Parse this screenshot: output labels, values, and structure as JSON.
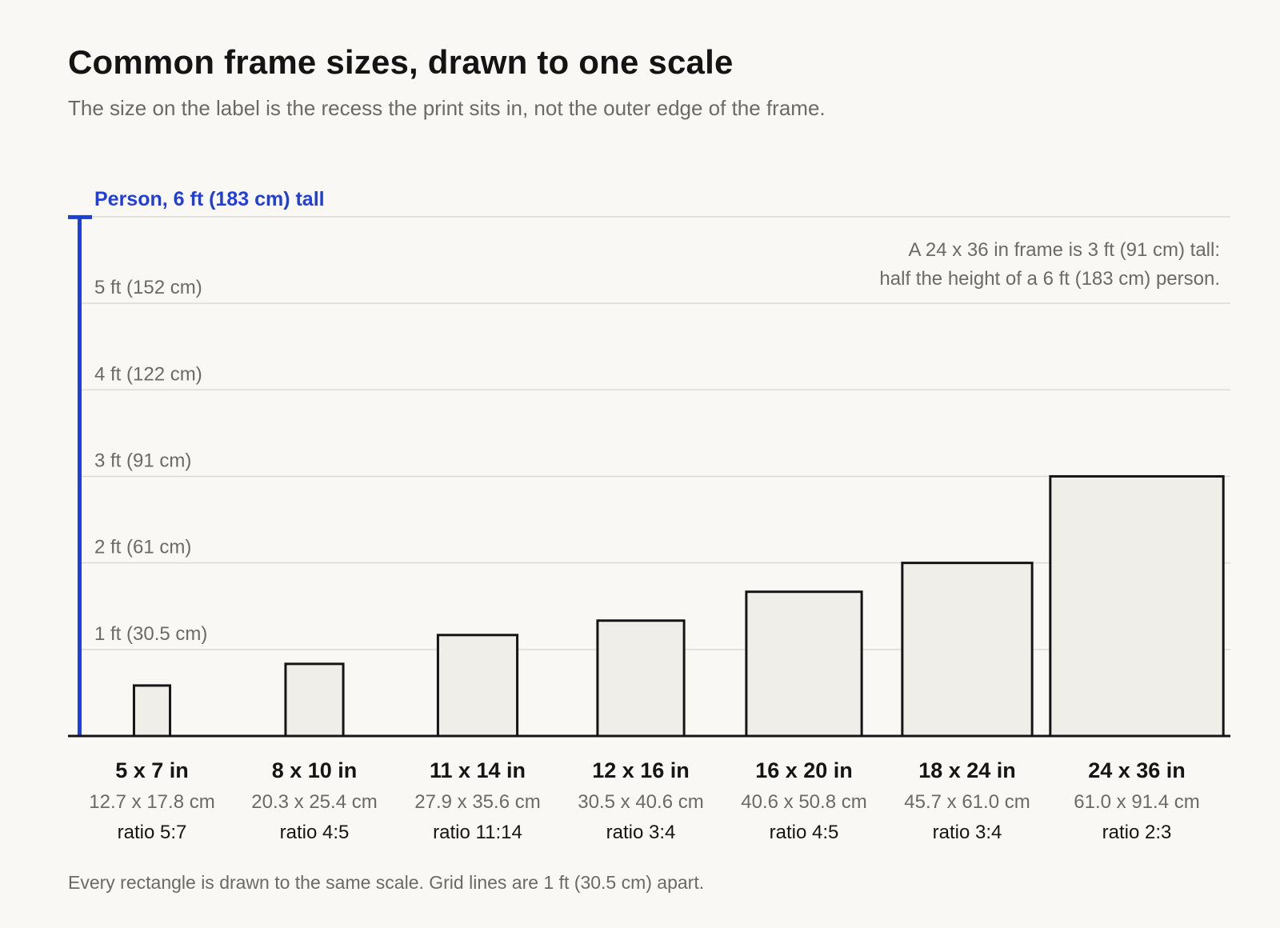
{
  "title": "Common frame sizes, drawn to one scale",
  "subtitle": "The size on the label is the recess the print sits in, not the outer edge of the frame.",
  "footnote": "Every rectangle is drawn to the same scale. Grid lines are 1 ft (30.5 cm) apart.",
  "colors": {
    "accent": "#1f3fd6",
    "frame_fill": "#f0eee8",
    "frame_stroke": "#151515",
    "grid": "#dcdad4",
    "muted_text": "#6b6a66",
    "background": "#f9f8f4"
  },
  "chart_data": {
    "type": "bar",
    "units": "in",
    "ylim": [
      0,
      72
    ],
    "grid": true,
    "y_ticks": [
      {
        "value": 12,
        "label": "1 ft (30.5 cm)"
      },
      {
        "value": 24,
        "label": "2 ft (61 cm)"
      },
      {
        "value": 36,
        "label": "3 ft (91 cm)"
      },
      {
        "value": 48,
        "label": "4 ft (122 cm)"
      },
      {
        "value": 60,
        "label": "5 ft (152 cm)"
      }
    ],
    "reference": {
      "label": "Person, 6 ft (183 cm) tall",
      "height": 72
    },
    "annotation": [
      "A 24 x 36 in frame is 3 ft (91 cm) tall:",
      "half the height of a 6 ft (183 cm) person."
    ],
    "frames": [
      {
        "label": "5 x 7 in",
        "width": 5,
        "height": 7,
        "cm": "12.7 x 17.8 cm",
        "ratio": "ratio 5:7"
      },
      {
        "label": "8 x 10 in",
        "width": 8,
        "height": 10,
        "cm": "20.3 x 25.4 cm",
        "ratio": "ratio 4:5"
      },
      {
        "label": "11 x 14 in",
        "width": 11,
        "height": 14,
        "cm": "27.9 x 35.6 cm",
        "ratio": "ratio 11:14"
      },
      {
        "label": "12 x 16 in",
        "width": 12,
        "height": 16,
        "cm": "30.5 x 40.6 cm",
        "ratio": "ratio 3:4"
      },
      {
        "label": "16 x 20 in",
        "width": 16,
        "height": 20,
        "cm": "40.6 x 50.8 cm",
        "ratio": "ratio 4:5"
      },
      {
        "label": "18 x 24 in",
        "width": 18,
        "height": 24,
        "cm": "45.7 x 61.0 cm",
        "ratio": "ratio 3:4"
      },
      {
        "label": "24 x 36 in",
        "width": 24,
        "height": 36,
        "cm": "61.0 x 91.4 cm",
        "ratio": "ratio 2:3"
      }
    ]
  }
}
